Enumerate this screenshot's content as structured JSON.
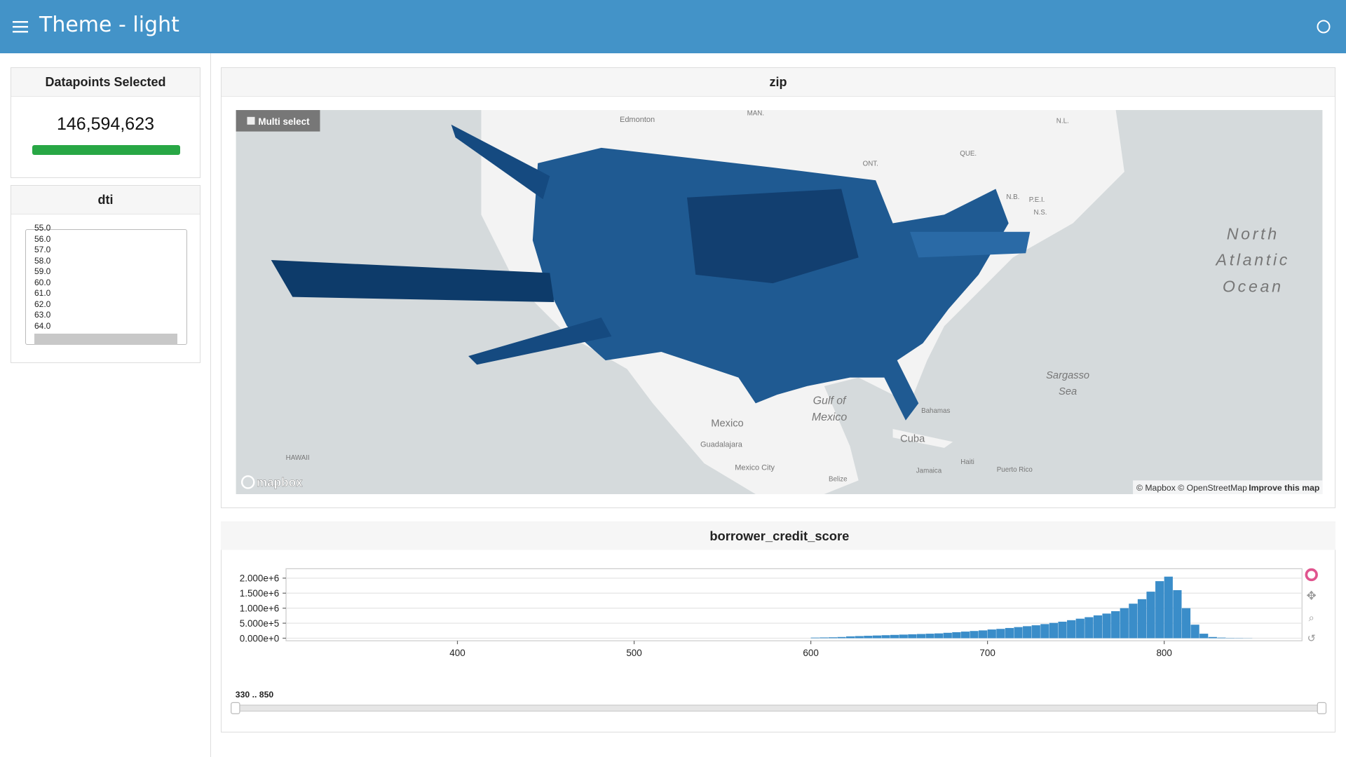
{
  "header": {
    "title": "Theme - light"
  },
  "indicator": {
    "title": "Datapoints Selected",
    "value": "146,594,623"
  },
  "dti": {
    "title": "dti",
    "items": [
      "55.0",
      "56.0",
      "57.0",
      "58.0",
      "59.0",
      "60.0",
      "61.0",
      "62.0",
      "63.0",
      "64.0"
    ]
  },
  "map": {
    "title": "zip",
    "multi_select": "Multi select",
    "logo": "mapbox",
    "attribution": "© Mapbox © OpenStreetMap",
    "improve": "Improve this map",
    "labels": [
      "Edmonton",
      "MAN.",
      "ONT.",
      "QUE.",
      "N.L.",
      "N.B.",
      "P.E.I.",
      "N.S.",
      "North",
      "Atlantic",
      "Ocean",
      "Gulf of",
      "Mexico",
      "Mexico",
      "Guadalajara",
      "Mexico City",
      "Cuba",
      "Bahamas",
      "Haiti",
      "Jamaica",
      "Puerto Rico",
      "Belize",
      "Sargasso",
      "Sea",
      "HAWAII"
    ]
  },
  "chart_data": {
    "type": "histogram",
    "title": "borrower_credit_score",
    "color": "#3a8dc9",
    "bins": [
      600,
      605,
      610,
      615,
      620,
      625,
      630,
      635,
      640,
      645,
      650,
      655,
      660,
      665,
      670,
      675,
      680,
      685,
      690,
      695,
      700,
      705,
      710,
      715,
      720,
      725,
      730,
      735,
      740,
      745,
      750,
      755,
      760,
      765,
      770,
      775,
      780,
      785,
      790,
      795,
      800,
      805,
      810,
      815,
      820,
      825,
      830,
      835,
      840,
      845,
      850
    ],
    "values": [
      20000,
      25000,
      30000,
      40000,
      60000,
      70000,
      80000,
      90000,
      100000,
      110000,
      120000,
      130000,
      140000,
      150000,
      160000,
      180000,
      200000,
      220000,
      240000,
      260000,
      290000,
      310000,
      340000,
      370000,
      400000,
      430000,
      470000,
      510000,
      550000,
      600000,
      650000,
      700000,
      760000,
      820000,
      900000,
      1000000,
      1150000,
      1300000,
      1550000,
      1900000,
      2050000,
      1600000,
      1000000,
      450000,
      150000,
      40000,
      20000,
      10000,
      8000,
      5000
    ],
    "xlim": [
      303,
      878
    ],
    "xticks": [
      400,
      500,
      600,
      700,
      800
    ],
    "ylim": [
      -86000,
      2314000
    ],
    "yticks": [
      {
        "value": 0,
        "label": "0.000e+0"
      },
      {
        "value": 500000,
        "label": "5.000e+5"
      },
      {
        "value": 1000000,
        "label": "1.000e+6"
      },
      {
        "value": 1500000,
        "label": "1.500e+6"
      },
      {
        "value": 2000000,
        "label": "2.000e+6"
      }
    ],
    "grid": true,
    "range_label": "330 .. 850"
  }
}
